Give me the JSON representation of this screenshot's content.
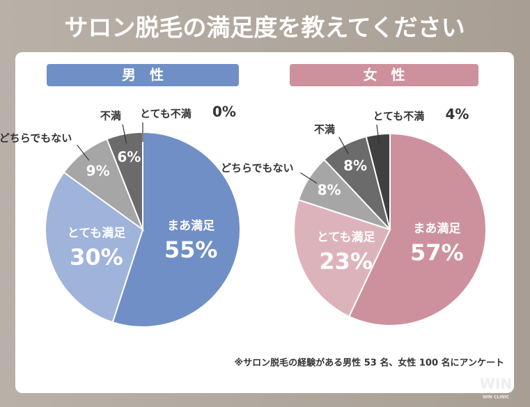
{
  "title": "サロン脱毛の満足度を教えてください",
  "note": "※サロン脱毛の経験がある男性 53 名、女性 100 名にアンケート",
  "logo": {
    "name": "WIN",
    "sub": "WIN CLINIC"
  },
  "chart_data": [
    {
      "type": "pie",
      "title": "男　性",
      "header_color": "#6f8fc6",
      "categories": [
        "まあ満足",
        "とても満足",
        "どちらでもない",
        "不満",
        "とても不満"
      ],
      "values": [
        55,
        30,
        9,
        6,
        0
      ],
      "value_labels": [
        "55%",
        "30%",
        "9%",
        "6%",
        "0%"
      ],
      "colors": [
        "#6f8fc6",
        "#a0b3da",
        "#a6a6a6",
        "#6b6b6b",
        "#404040"
      ]
    },
    {
      "type": "pie",
      "title": "女　性",
      "header_color": "#cd919d",
      "categories": [
        "まあ満足",
        "とても満足",
        "どちらでもない",
        "不満",
        "とても不満"
      ],
      "values": [
        57,
        23,
        8,
        8,
        4
      ],
      "value_labels": [
        "57%",
        "23%",
        "8%",
        "8%",
        "4%"
      ],
      "colors": [
        "#cd919d",
        "#ddb3bb",
        "#a6a6a6",
        "#6b6b6b",
        "#404040"
      ]
    }
  ]
}
